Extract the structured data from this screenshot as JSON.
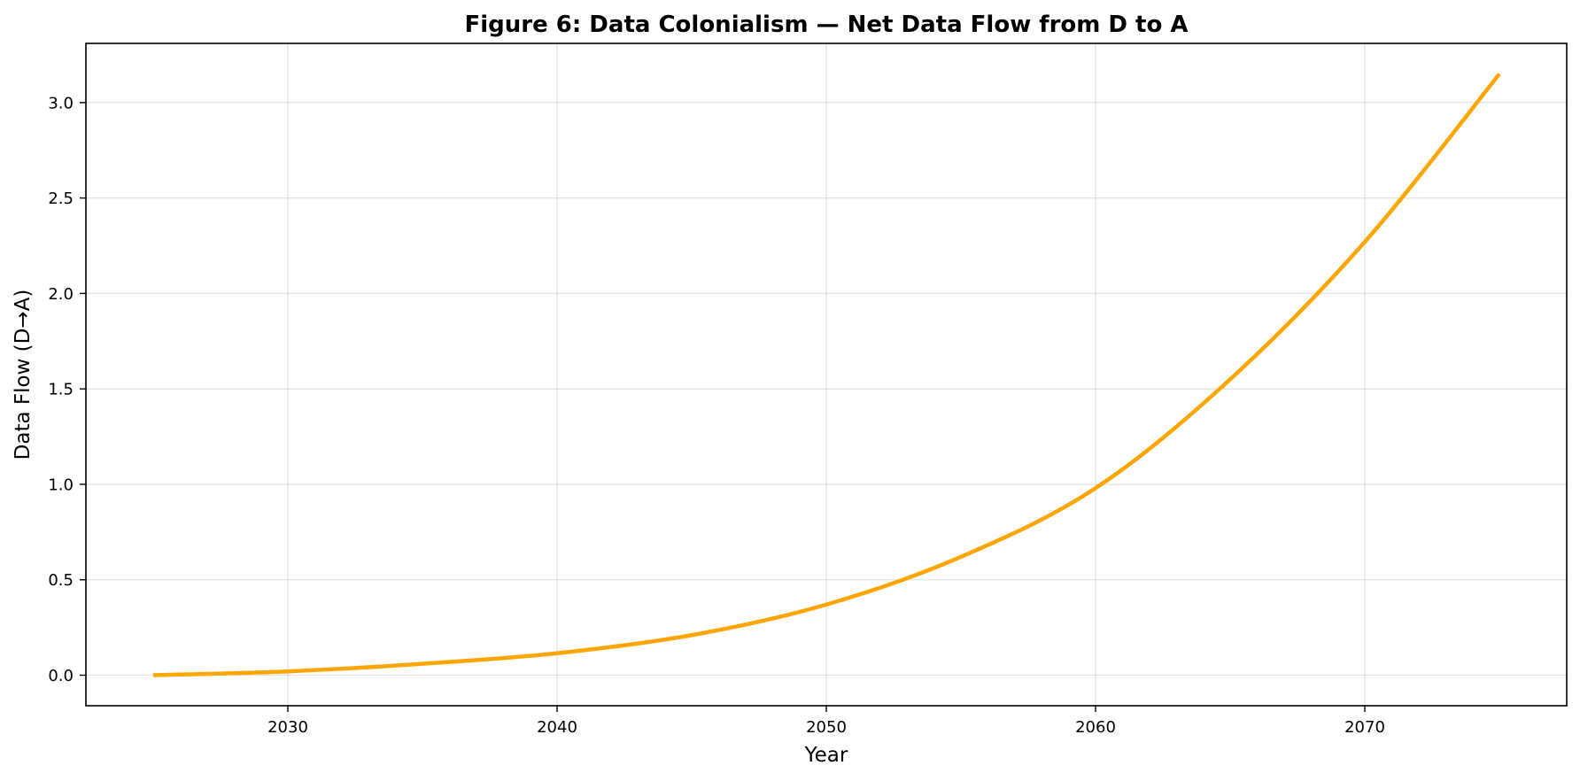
{
  "chart_data": {
    "type": "line",
    "title": "Figure 6: Data Colonialism — Net Data Flow from D to A",
    "xlabel": "Year",
    "ylabel": "Data Flow (D→A)",
    "xlim": [
      2022.5,
      2077.5
    ],
    "ylim": [
      -0.16,
      3.31
    ],
    "xticks": [
      2030,
      2040,
      2050,
      2060,
      2070
    ],
    "xtick_labels": [
      "2030",
      "2040",
      "2050",
      "2060",
      "2070"
    ],
    "yticks": [
      0.0,
      0.5,
      1.0,
      1.5,
      2.0,
      2.5,
      3.0
    ],
    "ytick_labels": [
      "0.0",
      "0.5",
      "1.0",
      "1.5",
      "2.0",
      "2.5",
      "3.0"
    ],
    "grid": true,
    "series": [
      {
        "color": "#FFA500",
        "x": [
          2025,
          2030,
          2035,
          2040,
          2045,
          2050,
          2055,
          2060,
          2065,
          2070,
          2075
        ],
        "y": [
          0.0,
          0.02,
          0.06,
          0.115,
          0.21,
          0.37,
          0.62,
          0.98,
          1.55,
          2.27,
          3.15
        ]
      }
    ]
  }
}
